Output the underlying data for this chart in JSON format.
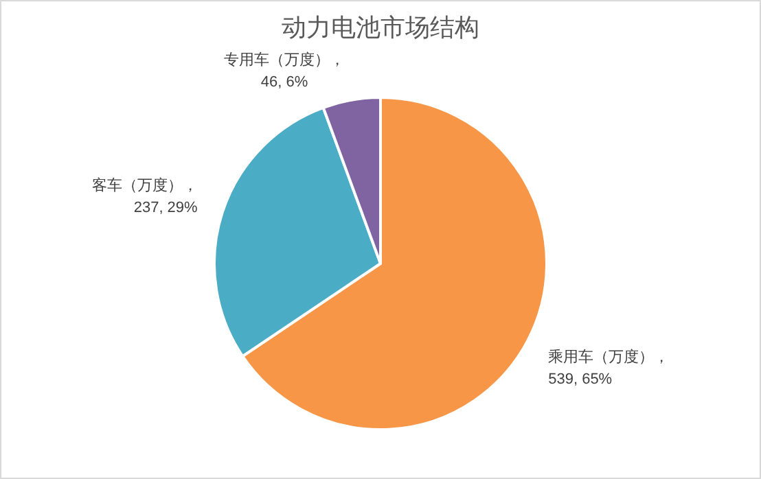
{
  "chart_data": {
    "type": "pie",
    "title": "动力电池市场结构",
    "categories": [
      "乘用车（万度）",
      "客车（万度）",
      "专用车（万度）"
    ],
    "values": [
      539,
      237,
      46
    ],
    "colors": [
      "#f79646",
      "#4bacc6",
      "#8064a2"
    ],
    "value_labels": [
      "， 539, 65%",
      "， 237, 29%",
      "， 46, 6%"
    ]
  }
}
